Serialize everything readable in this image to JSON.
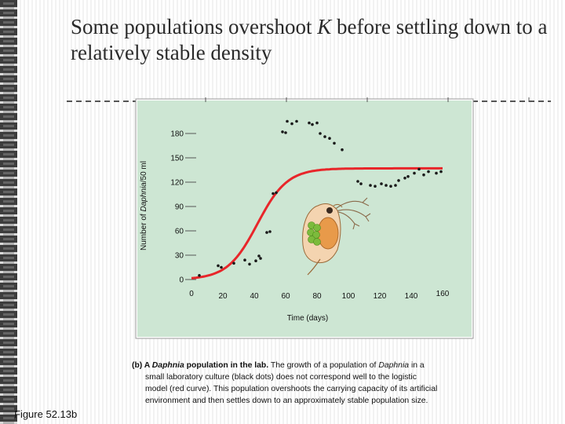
{
  "slide": {
    "title_part1": "Some populations overshoot ",
    "title_k": "K",
    "title_part2": " before settling down to a relatively stable density",
    "figure_label": "Figure 52.13b"
  },
  "caption": {
    "lead_prefix": "(b) A ",
    "lead_italic": "Daphnia",
    "lead_suffix": " population in the lab.",
    "line1_a": " The growth of a population of ",
    "line1_b": "Daphnia",
    "line1_c": " in a",
    "line2": "small laboratory culture (black dots) does not correspond well to the logistic",
    "line3": "model (red curve). This population overshoots the carrying capacity of its artificial",
    "line4": "environment and then settles down to an approximately stable population size."
  },
  "colors": {
    "plot_bg": "#cde6d3",
    "curve": "#e8262a",
    "dots": "#1a1a1a",
    "daphnia_body": "#e89a4a",
    "daphnia_eggs": "#7cbb3c"
  },
  "chart_data": {
    "type": "scatter",
    "xlabel": "Time (days)",
    "ylabel_prefix": "Number of ",
    "ylabel_italic": "Daphnia",
    "ylabel_suffix": "/50 ml",
    "xlim": [
      0,
      160
    ],
    "ylim": [
      0,
      180
    ],
    "x_ticks": [
      0,
      20,
      40,
      60,
      80,
      100,
      120,
      140,
      160
    ],
    "y_ticks": [
      0,
      30,
      60,
      90,
      120,
      150,
      180
    ],
    "series": [
      {
        "name": "Observed population (black dots)",
        "points": [
          [
            5,
            5
          ],
          [
            17,
            17
          ],
          [
            19,
            15
          ],
          [
            27,
            20
          ],
          [
            34,
            24
          ],
          [
            37,
            19
          ],
          [
            41,
            23
          ],
          [
            43,
            29
          ],
          [
            44,
            26
          ],
          [
            48,
            58
          ],
          [
            50,
            59
          ],
          [
            52,
            106
          ],
          [
            54,
            107
          ],
          [
            58,
            182
          ],
          [
            60,
            181
          ],
          [
            61,
            195
          ],
          [
            64,
            192
          ],
          [
            67,
            195
          ],
          [
            75,
            193
          ],
          [
            77,
            191
          ],
          [
            80,
            193
          ],
          [
            82,
            180
          ],
          [
            85,
            176
          ],
          [
            88,
            174
          ],
          [
            91,
            168
          ],
          [
            96,
            160
          ],
          [
            106,
            121
          ],
          [
            108,
            118
          ],
          [
            114,
            116
          ],
          [
            117,
            115
          ],
          [
            121,
            118
          ],
          [
            124,
            116
          ],
          [
            127,
            115
          ],
          [
            130,
            116
          ],
          [
            132,
            122
          ],
          [
            136,
            125
          ],
          [
            138,
            127
          ],
          [
            142,
            131
          ],
          [
            145,
            136
          ],
          [
            148,
            129
          ],
          [
            151,
            133
          ],
          [
            156,
            131
          ],
          [
            159,
            133
          ]
        ]
      },
      {
        "name": "Logistic model (red curve)",
        "model": "logistic",
        "K": 137,
        "r": 0.105,
        "t0": 42
      }
    ]
  }
}
